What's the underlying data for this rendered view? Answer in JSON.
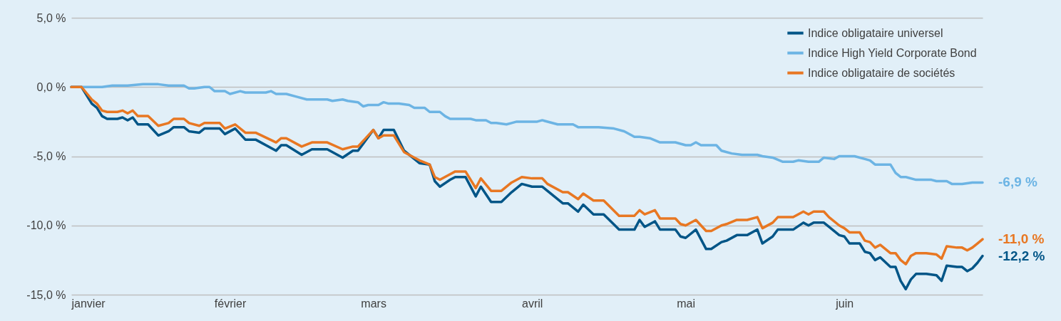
{
  "chart_data": {
    "type": "line",
    "x": [
      "--01-01",
      "--01-03",
      "--01-05",
      "--01-06",
      "--01-07",
      "--01-08",
      "--01-10",
      "--01-11",
      "--01-12",
      "--01-13",
      "--01-14",
      "--01-16",
      "--01-18",
      "--01-20",
      "--01-21",
      "--01-23",
      "--01-24",
      "--01-26",
      "--01-27",
      "--01-30",
      "--01-31",
      "--02-02",
      "--02-04",
      "--02-06",
      "--02-10",
      "--02-11",
      "--02-12",
      "--02-15",
      "--02-17",
      "--02-20",
      "--02-23",
      "--02-25",
      "--02-26",
      "--03-01",
      "--03-02",
      "--03-03",
      "--03-05",
      "--03-07",
      "--03-10",
      "--03-12",
      "--03-13",
      "--03-14",
      "--03-16",
      "--03-17",
      "--03-19",
      "--03-21",
      "--03-22",
      "--03-24",
      "--03-26",
      "--03-28",
      "--03-30",
      "--04-01",
      "--04-03",
      "--04-04",
      "--04-07",
      "--04-08",
      "--04-10",
      "--04-11",
      "--04-13",
      "--04-15",
      "--04-18",
      "--04-20",
      "--04-21",
      "--04-22",
      "--04-23",
      "--04-25",
      "--04-26",
      "--04-29",
      "--04-30",
      "--05-01",
      "--05-03",
      "--05-05",
      "--05-06",
      "--05-08",
      "--05-09",
      "--05-11",
      "--05-13",
      "--05-15",
      "--05-16",
      "--05-18",
      "--05-19",
      "--05-22",
      "--05-24",
      "--05-25",
      "--05-26",
      "--05-28",
      "--05-29",
      "--05-31",
      "--06-01",
      "--06-02",
      "--06-04",
      "--06-05",
      "--06-06",
      "--06-07",
      "--06-08",
      "--06-10",
      "--06-11",
      "--06-12",
      "--06-13",
      "--06-14",
      "--06-15",
      "--06-17",
      "--06-19",
      "--06-20",
      "--06-21",
      "--06-23",
      "--06-24",
      "--06-25",
      "--06-26",
      "--06-27",
      "--06-28"
    ],
    "series": [
      {
        "name": "Indice obligataire universel",
        "color": "#005587",
        "values": [
          0,
          0,
          -1.2,
          -1.5,
          -2.1,
          -2.3,
          -2.3,
          -2.2,
          -2.4,
          -2.2,
          -2.7,
          -2.7,
          -3.5,
          -3.2,
          -2.9,
          -2.9,
          -3.2,
          -3.3,
          -3.0,
          -3.0,
          -3.4,
          -3.0,
          -3.8,
          -3.8,
          -4.6,
          -4.2,
          -4.2,
          -4.9,
          -4.5,
          -4.5,
          -5.1,
          -4.6,
          -4.6,
          -3.1,
          -3.7,
          -3.1,
          -3.1,
          -4.6,
          -5.5,
          -5.6,
          -6.8,
          -7.2,
          -6.7,
          -6.5,
          -6.5,
          -7.9,
          -7.2,
          -8.3,
          -8.3,
          -7.6,
          -7.0,
          -7.2,
          -7.2,
          -7.5,
          -8.4,
          -8.4,
          -9.0,
          -8.5,
          -9.2,
          -9.2,
          -10.3,
          -10.3,
          -10.3,
          -9.6,
          -10.1,
          -9.7,
          -10.3,
          -10.3,
          -10.8,
          -10.9,
          -10.3,
          -11.7,
          -11.7,
          -11.2,
          -11.1,
          -10.7,
          -10.7,
          -10.3,
          -11.3,
          -10.8,
          -10.3,
          -10.3,
          -9.8,
          -10.0,
          -9.8,
          -9.8,
          -10.1,
          -10.7,
          -10.8,
          -11.3,
          -11.3,
          -11.9,
          -12.0,
          -12.5,
          -12.3,
          -13.0,
          -13.0,
          -14.0,
          -14.6,
          -13.9,
          -13.5,
          -13.5,
          -13.6,
          -14.0,
          -12.9,
          -13.0,
          -13.0,
          -13.3,
          -13.1,
          -12.7,
          -12.2
        ]
      },
      {
        "name": "Indice High Yield Corporate Bond",
        "color": "#6cb4e4",
        "x": [
          "--01-01",
          "--01-04",
          "--01-07",
          "--01-09",
          "--01-12",
          "--01-15",
          "--01-18",
          "--01-20",
          "--01-21",
          "--01-23",
          "--01-24",
          "--01-25",
          "--01-27",
          "--01-28",
          "--01-29",
          "--01-31",
          "--02-01",
          "--02-03",
          "--02-04",
          "--02-08",
          "--02-09",
          "--02-10",
          "--02-12",
          "--02-14",
          "--02-16",
          "--02-20",
          "--02-21",
          "--02-23",
          "--02-24",
          "--02-26",
          "--02-27",
          "--02-28",
          "--03-02",
          "--03-03",
          "--03-04",
          "--03-06",
          "--03-08",
          "--03-09",
          "--03-11",
          "--03-12",
          "--03-14",
          "--03-15",
          "--03-16",
          "--03-20",
          "--03-21",
          "--03-23",
          "--03-24",
          "--03-25",
          "--03-27",
          "--03-28",
          "--03-29",
          "--04-02",
          "--04-03",
          "--04-06",
          "--04-09",
          "--04-10",
          "--04-14",
          "--04-17",
          "--04-19",
          "--04-21",
          "--04-22",
          "--04-24",
          "--04-26",
          "--04-29",
          "--05-01",
          "--05-02",
          "--05-03",
          "--05-04",
          "--05-07",
          "--05-08",
          "--05-10",
          "--05-12",
          "--05-15",
          "--05-16",
          "--05-18",
          "--05-20",
          "--05-22",
          "--05-23",
          "--05-25",
          "--05-27",
          "--05-28",
          "--05-30",
          "--05-31",
          "--06-03",
          "--06-05",
          "--06-06",
          "--06-07",
          "--06-10",
          "--06-11",
          "--06-12",
          "--06-13",
          "--06-15",
          "--06-18",
          "--06-19",
          "--06-21",
          "--06-22",
          "--06-24",
          "--06-26",
          "--06-28"
        ],
        "values": [
          0,
          0,
          0,
          0.1,
          0.1,
          0.2,
          0.2,
          0.1,
          0.1,
          0.1,
          -0.1,
          -0.1,
          0,
          0,
          -0.3,
          -0.3,
          -0.5,
          -0.3,
          -0.4,
          -0.4,
          -0.3,
          -0.5,
          -0.5,
          -0.7,
          -0.9,
          -0.9,
          -1.0,
          -0.9,
          -1.0,
          -1.1,
          -1.4,
          -1.3,
          -1.3,
          -1.1,
          -1.2,
          -1.2,
          -1.3,
          -1.5,
          -1.5,
          -1.8,
          -1.8,
          -2.1,
          -2.3,
          -2.3,
          -2.4,
          -2.4,
          -2.6,
          -2.6,
          -2.7,
          -2.6,
          -2.5,
          -2.5,
          -2.4,
          -2.7,
          -2.7,
          -2.9,
          -2.9,
          -3.0,
          -3.2,
          -3.6,
          -3.6,
          -3.7,
          -4.0,
          -4.0,
          -4.2,
          -4.2,
          -4.0,
          -4.2,
          -4.2,
          -4.6,
          -4.8,
          -4.9,
          -4.9,
          -5.0,
          -5.1,
          -5.4,
          -5.4,
          -5.3,
          -5.4,
          -5.4,
          -5.1,
          -5.2,
          -5.0,
          -5.0,
          -5.2,
          -5.3,
          -5.6,
          -5.6,
          -6.2,
          -6.5,
          -6.5,
          -6.7,
          -6.7,
          -6.8,
          -6.8,
          -7.0,
          -7.0,
          -6.9,
          -6.9
        ]
      },
      {
        "name": "Indice obligataire de sociétés",
        "color": "#e87722",
        "values": [
          0,
          0,
          -0.9,
          -1.2,
          -1.7,
          -1.8,
          -1.8,
          -1.7,
          -1.9,
          -1.7,
          -2.1,
          -2.1,
          -2.8,
          -2.6,
          -2.3,
          -2.3,
          -2.6,
          -2.8,
          -2.6,
          -2.6,
          -3.0,
          -2.7,
          -3.3,
          -3.3,
          -4.0,
          -3.7,
          -3.7,
          -4.3,
          -4.0,
          -4.0,
          -4.5,
          -4.3,
          -4.3,
          -3.1,
          -3.7,
          -3.5,
          -3.5,
          -4.7,
          -5.3,
          -5.6,
          -6.5,
          -6.7,
          -6.3,
          -6.1,
          -6.1,
          -7.3,
          -6.6,
          -7.5,
          -7.5,
          -6.9,
          -6.5,
          -6.6,
          -6.6,
          -7.0,
          -7.6,
          -7.6,
          -8.1,
          -7.7,
          -8.2,
          -8.2,
          -9.3,
          -9.3,
          -9.3,
          -8.9,
          -9.2,
          -8.9,
          -9.5,
          -9.5,
          -9.9,
          -10.0,
          -9.6,
          -10.4,
          -10.4,
          -10.0,
          -9.9,
          -9.6,
          -9.6,
          -9.4,
          -10.2,
          -9.8,
          -9.4,
          -9.4,
          -9.0,
          -9.2,
          -9.0,
          -9.0,
          -9.4,
          -10.0,
          -10.2,
          -10.5,
          -10.5,
          -11.1,
          -11.2,
          -11.6,
          -11.4,
          -12.0,
          -12.0,
          -12.5,
          -12.8,
          -12.2,
          -12.0,
          -12.0,
          -12.1,
          -12.4,
          -11.5,
          -11.6,
          -11.6,
          -11.8,
          -11.6,
          -11.3,
          -11.0
        ]
      }
    ],
    "xlim": [
      "--01-01",
      "--06-28"
    ],
    "xticks": [
      {
        "value": "--01-01",
        "label": "janvier"
      },
      {
        "value": "--02-01",
        "label": "février"
      },
      {
        "value": "--03-01",
        "label": "mars"
      },
      {
        "value": "--04-01",
        "label": "avril"
      },
      {
        "value": "--05-01",
        "label": "mai"
      },
      {
        "value": "--06-01",
        "label": "juin"
      }
    ],
    "ylim": [
      -15,
      5
    ],
    "yticks": [
      {
        "value": 5,
        "label": "5,0 %"
      },
      {
        "value": 0,
        "label": "0,0 %"
      },
      {
        "value": -5,
        "label": "-5,0 %"
      },
      {
        "value": -10,
        "label": "-10,0 %"
      },
      {
        "value": -15,
        "label": "-15,0 %"
      }
    ],
    "grid": "y",
    "legend": "top right",
    "annotations": [
      {
        "text": "-6,9 %",
        "x": "--06-28",
        "y": -6.9
      },
      {
        "text": "-11,0 %",
        "x": "--06-28",
        "y": -11.0
      },
      {
        "text": "-12,2 %",
        "x": "--06-28",
        "y": -12.2
      }
    ]
  }
}
